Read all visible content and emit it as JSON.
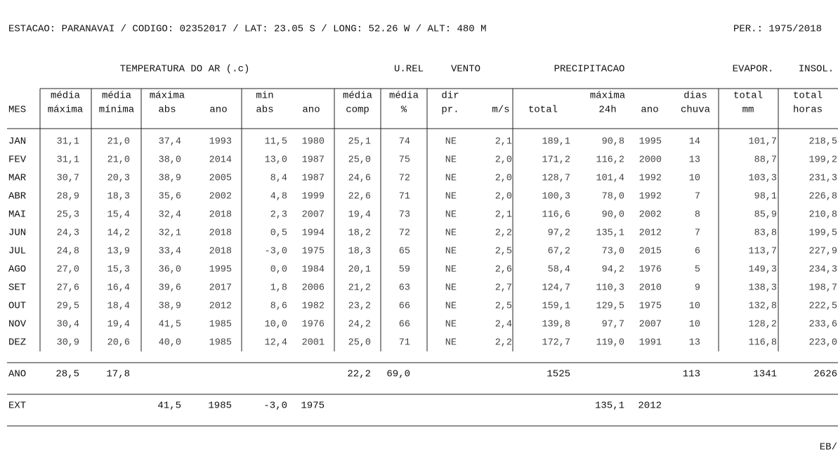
{
  "header": {
    "station": "ESTACAO: PARANAVAI / CODIGO: 02352017 / LAT: 23.05 S / LONG: 52.26 W / ALT: 480 M",
    "period": "PER.: 1975/2018"
  },
  "groups": [
    "TEMPERATURA DO AR (.c)",
    "U.REL",
    "VENTO",
    "PRECIPITACAO",
    "EVAPOR.",
    "INSOL."
  ],
  "column_headers": [
    [
      "MES"
    ],
    [
      "média",
      "máxima"
    ],
    [
      "média",
      "mínima"
    ],
    [
      "máxima",
      "abs"
    ],
    [
      "ano"
    ],
    [
      "min",
      "abs"
    ],
    [
      "ano"
    ],
    [
      "média",
      "comp"
    ],
    [
      "média",
      "%"
    ],
    [
      "dir",
      "pr."
    ],
    [
      "m/s"
    ],
    [
      "total"
    ],
    [
      "máxima",
      "24h"
    ],
    [
      "ano"
    ],
    [
      "dias",
      "chuva"
    ],
    [
      "total",
      "mm"
    ],
    [
      "total",
      "horas"
    ]
  ],
  "rows": [
    [
      "JAN",
      "31,1",
      "21,0",
      "37,4",
      "1993",
      "11,5",
      "1980",
      "25,1",
      "74",
      "NE",
      "2,1",
      "189,1",
      "90,8",
      "1995",
      "14",
      "101,7",
      "218,5"
    ],
    [
      "FEV",
      "31,1",
      "21,0",
      "38,0",
      "2014",
      "13,0",
      "1987",
      "25,0",
      "75",
      "NE",
      "2,0",
      "171,2",
      "116,2",
      "2000",
      "13",
      "88,7",
      "199,2"
    ],
    [
      "MAR",
      "30,7",
      "20,3",
      "38,9",
      "2005",
      "8,4",
      "1987",
      "24,6",
      "72",
      "NE",
      "2,0",
      "128,7",
      "101,4",
      "1992",
      "10",
      "103,3",
      "231,3"
    ],
    [
      "ABR",
      "28,9",
      "18,3",
      "35,6",
      "2002",
      "4,8",
      "1999",
      "22,6",
      "71",
      "NE",
      "2,0",
      "100,3",
      "78,0",
      "1992",
      "7",
      "98,1",
      "226,8"
    ],
    [
      "MAI",
      "25,3",
      "15,4",
      "32,4",
      "2018",
      "2,3",
      "2007",
      "19,4",
      "73",
      "NE",
      "2,1",
      "116,6",
      "90,0",
      "2002",
      "8",
      "85,9",
      "210,8"
    ],
    [
      "JUN",
      "24,3",
      "14,2",
      "32,1",
      "2018",
      "0,5",
      "1994",
      "18,2",
      "72",
      "NE",
      "2,2",
      "97,2",
      "135,1",
      "2012",
      "7",
      "83,8",
      "199,5"
    ],
    [
      "JUL",
      "24,8",
      "13,9",
      "33,4",
      "2018",
      "-3,0",
      "1975",
      "18,3",
      "65",
      "NE",
      "2,5",
      "67,2",
      "73,0",
      "2015",
      "6",
      "113,7",
      "227,9"
    ],
    [
      "AGO",
      "27,0",
      "15,3",
      "36,0",
      "1995",
      "0,0",
      "1984",
      "20,1",
      "59",
      "NE",
      "2,6",
      "58,4",
      "94,2",
      "1976",
      "5",
      "149,3",
      "234,3"
    ],
    [
      "SET",
      "27,6",
      "16,4",
      "39,6",
      "2017",
      "1,8",
      "2006",
      "21,2",
      "63",
      "NE",
      "2,7",
      "124,7",
      "110,3",
      "2010",
      "9",
      "138,3",
      "198,7"
    ],
    [
      "OUT",
      "29,5",
      "18,4",
      "38,9",
      "2012",
      "8,6",
      "1982",
      "23,2",
      "66",
      "NE",
      "2,5",
      "159,1",
      "129,5",
      "1975",
      "10",
      "132,8",
      "222,5"
    ],
    [
      "NOV",
      "30,4",
      "19,4",
      "41,5",
      "1985",
      "10,0",
      "1976",
      "24,2",
      "66",
      "NE",
      "2,4",
      "139,8",
      "97,7",
      "2007",
      "10",
      "128,2",
      "233,6"
    ],
    [
      "DEZ",
      "30,9",
      "20,6",
      "40,0",
      "1985",
      "12,4",
      "2001",
      "25,0",
      "71",
      "NE",
      "2,2",
      "172,7",
      "119,0",
      "1991",
      "13",
      "116,8",
      "223,0"
    ]
  ],
  "annual": {
    "label": "ANO",
    "values": {
      "1": "28,5",
      "2": "17,8",
      "7": "22,2",
      "8": "69,0",
      "11": "1525",
      "14": "113",
      "15": "1341",
      "16": "2626"
    }
  },
  "extremes": {
    "label": "EXT",
    "values": {
      "3": "41,5",
      "4": "1985",
      "5": "-3,0",
      "6": "1975",
      "12": "135,1",
      "13": "2012"
    }
  },
  "footer": "EB/"
}
